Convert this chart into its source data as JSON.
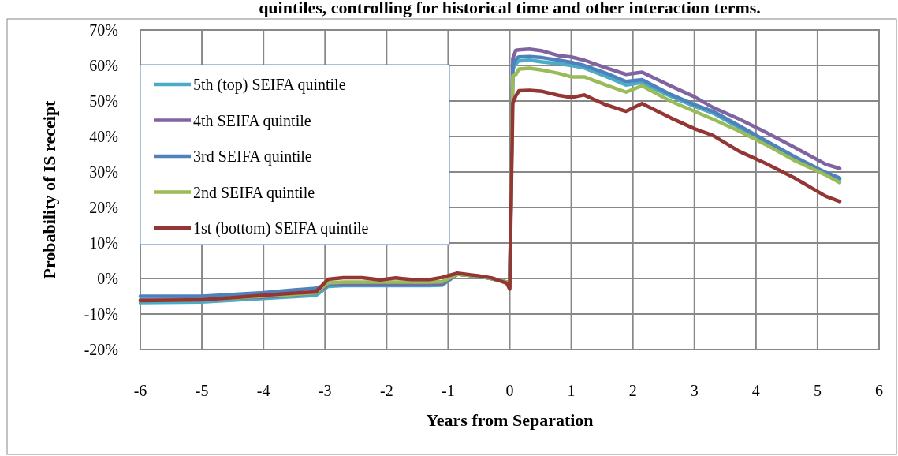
{
  "chart_data": {
    "type": "line",
    "title": "quintiles, controlling for historical time and other interaction terms.",
    "xlabel": "Years from Separation",
    "ylabel": "Probability of IS receipt",
    "x": [
      -6,
      -5,
      -4.5,
      -4,
      -3.5,
      -3.15,
      -2.95,
      -2.7,
      -2.4,
      -2.1,
      -1.85,
      -1.6,
      -1.3,
      -1.1,
      -0.85,
      -0.5,
      -0.3,
      -0.05,
      0,
      0.05,
      0.1,
      0.15,
      0.32,
      0.53,
      0.79,
      1,
      1.21,
      1.55,
      1.89,
      2.15,
      2.62,
      3,
      3.3,
      3.73,
      4.15,
      4.62,
      5.13,
      5.36
    ],
    "series": [
      {
        "name": "5th (top) SEIFA quintile",
        "color": "#4bacc6",
        "values": [
          -6.8,
          -6.6,
          -6.1,
          -5.6,
          -5.1,
          -4.8,
          -2.2,
          -2,
          -2,
          -2,
          -2,
          -2,
          -2,
          -1.9,
          1.2,
          0.6,
          0,
          -1,
          -2.5,
          59,
          60.5,
          61.3,
          61.5,
          61,
          60.5,
          60,
          59.3,
          57,
          54.5,
          55.2,
          51.3,
          48.5,
          46.6,
          42.5,
          38.4,
          33.9,
          29.4,
          27.9
        ]
      },
      {
        "name": "4th SEIFA quintile",
        "color": "#8064a2",
        "values": [
          -6,
          -5.8,
          -5.5,
          -5.2,
          -4.6,
          -4,
          -1.8,
          -1.8,
          -1.8,
          -1.8,
          -1.8,
          -1.8,
          -1.8,
          -1.6,
          1.2,
          0.6,
          0,
          -1,
          -2.5,
          62,
          64.3,
          64.4,
          64.6,
          64.1,
          62.8,
          62.4,
          61.5,
          59.4,
          57.5,
          58.1,
          54.2,
          51.2,
          48.2,
          44.9,
          41.3,
          37,
          32.2,
          31
        ]
      },
      {
        "name": "3rd SEIFA quintile",
        "color": "#4f81bd",
        "values": [
          -5,
          -5,
          -4.5,
          -4,
          -3.2,
          -2.8,
          -1.5,
          -1.2,
          -1.2,
          -1.2,
          -1.2,
          -1.2,
          -1.2,
          -1.1,
          1.2,
          0.6,
          0,
          -1,
          -2.5,
          60,
          61.8,
          62.4,
          62.5,
          62.2,
          61.5,
          60.9,
          60,
          57.9,
          55.5,
          56,
          51.8,
          49,
          47.1,
          43,
          38.9,
          34.4,
          29.9,
          28.3
        ]
      },
      {
        "name": "2nd SEIFA quintile",
        "color": "#9bbb59",
        "values": [
          -6.2,
          -6,
          -5.5,
          -5,
          -4.5,
          -4,
          -1.2,
          -1,
          -1,
          -1,
          -1,
          -1,
          -1,
          -0.9,
          1.2,
          0.6,
          0,
          -1,
          -2.5,
          57,
          57.5,
          59,
          59.2,
          58.7,
          57.8,
          56.8,
          56.8,
          54.6,
          52.5,
          54.3,
          49.9,
          47.1,
          44.9,
          41.5,
          37.8,
          33.3,
          29.2,
          27
        ]
      },
      {
        "name": "1st (bottom) SEIFA quintile",
        "color": "#943634",
        "values": [
          -6.2,
          -6,
          -5.4,
          -4.7,
          -4.1,
          -3.8,
          -0.2,
          0.2,
          0.2,
          -0.4,
          0.15,
          -0.3,
          -0.3,
          0.3,
          1.5,
          0.75,
          0.2,
          -1.3,
          -3,
          49.5,
          51.5,
          52.9,
          53,
          52.7,
          51.6,
          51,
          51.7,
          49,
          47.1,
          49.3,
          45.2,
          42.2,
          40.3,
          35.8,
          32.5,
          28.4,
          23.2,
          21.7
        ]
      }
    ],
    "xlim": [
      -6,
      6
    ],
    "xticks": [
      -6,
      -5,
      -4,
      -3,
      -2,
      -1,
      0,
      1,
      2,
      3,
      4,
      5,
      6
    ],
    "ylim": [
      -20,
      70
    ],
    "yticks": [
      {
        "value": -20,
        "label": "-20%"
      },
      {
        "value": -10,
        "label": "-10%"
      },
      {
        "value": 0,
        "label": "0%"
      },
      {
        "value": 10,
        "label": "10%"
      },
      {
        "value": 20,
        "label": "20%"
      },
      {
        "value": 30,
        "label": "30%"
      },
      {
        "value": 40,
        "label": "40%"
      },
      {
        "value": 50,
        "label": "50%"
      },
      {
        "value": 60,
        "label": "60%"
      },
      {
        "value": 70,
        "label": "70%"
      }
    ],
    "grid": true,
    "legend": "top left",
    "marker": "none",
    "line_style": "solid"
  }
}
